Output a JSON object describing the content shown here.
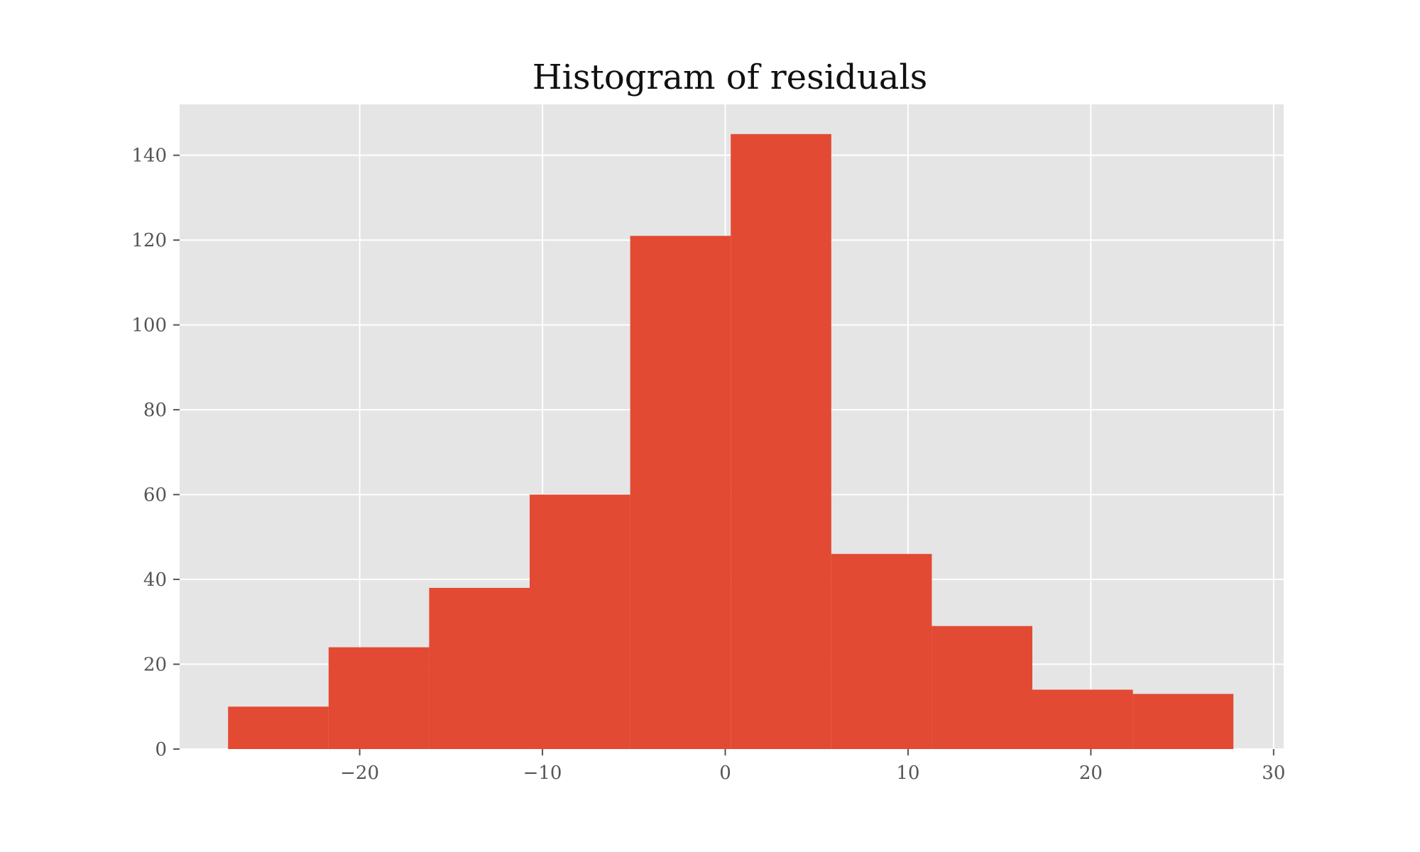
{
  "chart_data": {
    "type": "bar",
    "title": "Histogram of residuals",
    "xlabel": "",
    "ylabel": "",
    "xlim": [
      -29.85,
      30.55
    ],
    "ylim": [
      0,
      152
    ],
    "xticks": [
      -20,
      -10,
      0,
      10,
      20,
      30
    ],
    "xtick_labels": [
      "−20",
      "−10",
      "0",
      "10",
      "20",
      "30"
    ],
    "yticks": [
      0,
      20,
      40,
      60,
      80,
      100,
      120,
      140
    ],
    "ytick_labels": [
      "0",
      "20",
      "40",
      "60",
      "80",
      "100",
      "120",
      "140"
    ],
    "grid": true,
    "bar_color": "#E24A33",
    "background_color": "#E5E5E5",
    "bins": [
      {
        "x0": -27.2,
        "x1": -21.7,
        "count": 10
      },
      {
        "x0": -21.7,
        "x1": -16.2,
        "count": 24
      },
      {
        "x0": -16.2,
        "x1": -10.7,
        "count": 38
      },
      {
        "x0": -10.7,
        "x1": -5.2,
        "count": 60
      },
      {
        "x0": -5.2,
        "x1": 0.3,
        "count": 121
      },
      {
        "x0": 0.3,
        "x1": 5.8,
        "count": 145
      },
      {
        "x0": 5.8,
        "x1": 11.3,
        "count": 46
      },
      {
        "x0": 11.3,
        "x1": 16.8,
        "count": 29
      },
      {
        "x0": 16.8,
        "x1": 22.3,
        "count": 14
      },
      {
        "x0": 22.3,
        "x1": 27.8,
        "count": 13
      }
    ]
  }
}
